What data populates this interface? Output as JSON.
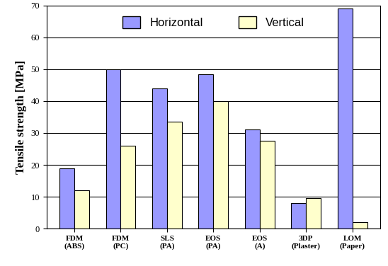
{
  "chart_data": {
    "type": "bar",
    "categories": [
      "FDM\n(ABS)",
      "FDM\n(PC)",
      "SLS\n(PA)",
      "EOS\n(PA)",
      "EOS\n(A)",
      "3DP\n(Plaster)",
      "LOM\n(Paper)"
    ],
    "y_label": "Tensile strength [MPa]",
    "series": [
      {
        "name": "Horizontal",
        "color": "#9999ff",
        "values": [
          19,
          50,
          44,
          48.5,
          31,
          8,
          69
        ]
      },
      {
        "name": "Vertical",
        "color": "#ffffcc",
        "values": [
          12,
          26,
          33.5,
          40,
          27.5,
          9.5,
          2
        ]
      }
    ],
    "ylim": [
      0,
      70
    ],
    "yticks": [
      0,
      10,
      20,
      30,
      40,
      50,
      60,
      70
    ],
    "grid": true,
    "legend": "upper center"
  }
}
